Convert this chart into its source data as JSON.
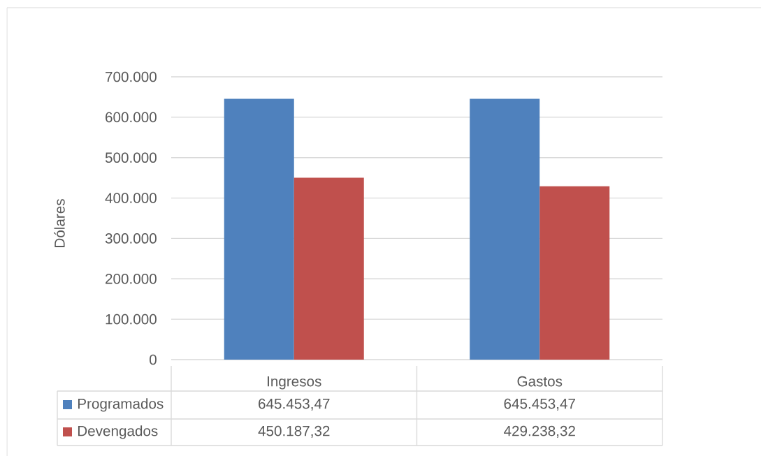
{
  "chart_data": {
    "type": "bar",
    "ylabel": "Dólares",
    "categories": [
      "Ingresos",
      "Gastos"
    ],
    "series": [
      {
        "name": "Programados",
        "color": "#4f81bd",
        "values": [
          645453.47,
          645453.47
        ],
        "value_labels": [
          "645.453,47",
          "645.453,47"
        ]
      },
      {
        "name": "Devengados",
        "color": "#c0504d",
        "values": [
          450187.32,
          429238.32
        ],
        "value_labels": [
          "450.187,32",
          "429.238,32"
        ]
      }
    ],
    "ylim": [
      0,
      700000
    ],
    "yticks": [
      0,
      {
        "value": 100000,
        "label": "100.000"
      },
      {
        "value": 200000,
        "label": "200.000"
      },
      {
        "value": 300000,
        "label": "300.000"
      },
      {
        "value": 400000,
        "label": "400.000"
      },
      {
        "value": 500000,
        "label": "500.000"
      },
      {
        "value": 600000,
        "label": "600.000"
      },
      {
        "value": 700000,
        "label": "700.000"
      }
    ],
    "grid": "y",
    "legend": "bottom"
  }
}
